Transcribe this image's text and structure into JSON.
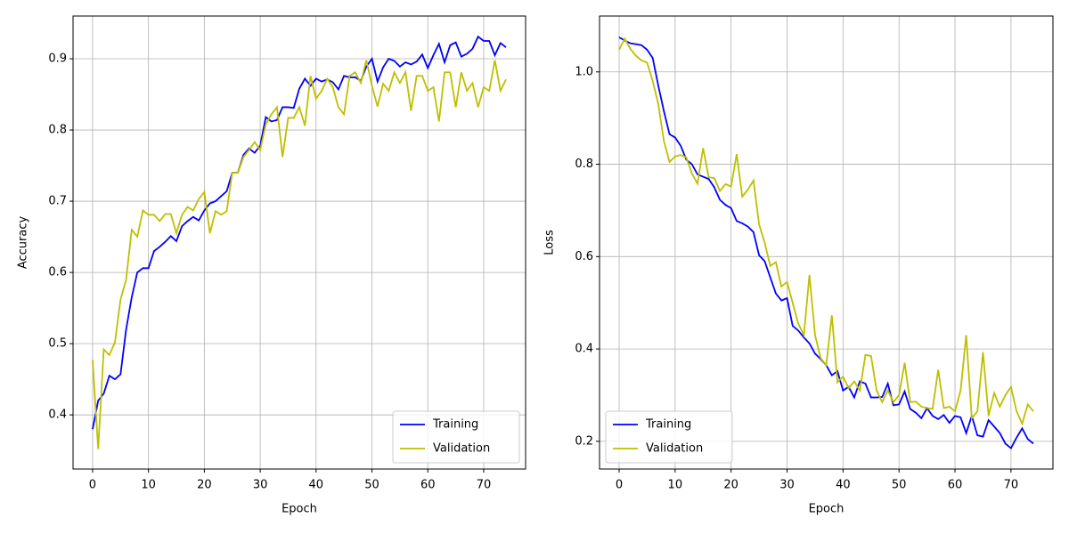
{
  "chart_data": [
    {
      "type": "line",
      "xlabel": "Epoch",
      "ylabel": "Accuracy",
      "grid": true,
      "legend": "lower right",
      "x": [
        0,
        1,
        2,
        3,
        4,
        5,
        6,
        7,
        8,
        9,
        10,
        11,
        12,
        13,
        14,
        15,
        16,
        17,
        18,
        19,
        20,
        21,
        22,
        23,
        24,
        25,
        26,
        27,
        28,
        29,
        30,
        31,
        32,
        33,
        34,
        35,
        36,
        37,
        38,
        39,
        40,
        41,
        42,
        43,
        44,
        45,
        46,
        47,
        48,
        49,
        50,
        51,
        52,
        53,
        54,
        55,
        56,
        57,
        58,
        59,
        60,
        61,
        62,
        63,
        64,
        65,
        66,
        67,
        68,
        69,
        70,
        71,
        72,
        73,
        74
      ],
      "xlim": [
        -3.5,
        77.5
      ],
      "xticks": [
        0,
        10,
        20,
        30,
        40,
        50,
        60,
        70
      ],
      "ylim": [
        0.324,
        0.96
      ],
      "yticks": [
        0.4,
        0.5,
        0.6,
        0.7,
        0.8,
        0.9
      ],
      "series": [
        {
          "name": "Training",
          "color": "#0000ff",
          "values": [
            0.38,
            0.42,
            0.43,
            0.455,
            0.45,
            0.457,
            0.52,
            0.565,
            0.6,
            0.606,
            0.606,
            0.63,
            0.636,
            0.643,
            0.651,
            0.644,
            0.665,
            0.672,
            0.678,
            0.673,
            0.687,
            0.697,
            0.7,
            0.707,
            0.714,
            0.74,
            0.74,
            0.765,
            0.774,
            0.768,
            0.778,
            0.818,
            0.812,
            0.814,
            0.832,
            0.832,
            0.831,
            0.858,
            0.872,
            0.862,
            0.872,
            0.868,
            0.871,
            0.867,
            0.857,
            0.876,
            0.874,
            0.874,
            0.869,
            0.889,
            0.9,
            0.868,
            0.888,
            0.9,
            0.897,
            0.889,
            0.895,
            0.892,
            0.896,
            0.906,
            0.887,
            0.905,
            0.921,
            0.895,
            0.919,
            0.923,
            0.903,
            0.907,
            0.914,
            0.931,
            0.925,
            0.925,
            0.905,
            0.922,
            0.916
          ]
        },
        {
          "name": "Validation",
          "color": "#bfbf00",
          "values": [
            0.477,
            0.352,
            0.492,
            0.484,
            0.502,
            0.562,
            0.59,
            0.66,
            0.65,
            0.687,
            0.681,
            0.681,
            0.672,
            0.682,
            0.682,
            0.655,
            0.681,
            0.692,
            0.687,
            0.703,
            0.713,
            0.655,
            0.686,
            0.681,
            0.686,
            0.74,
            0.74,
            0.762,
            0.772,
            0.783,
            0.772,
            0.808,
            0.822,
            0.832,
            0.762,
            0.817,
            0.817,
            0.832,
            0.806,
            0.876,
            0.844,
            0.855,
            0.872,
            0.86,
            0.832,
            0.822,
            0.876,
            0.881,
            0.866,
            0.898,
            0.862,
            0.833,
            0.865,
            0.855,
            0.881,
            0.866,
            0.881,
            0.827,
            0.876,
            0.876,
            0.855,
            0.86,
            0.812,
            0.881,
            0.881,
            0.832,
            0.881,
            0.855,
            0.866,
            0.832,
            0.86,
            0.855,
            0.898,
            0.855,
            0.871
          ]
        }
      ]
    },
    {
      "type": "line",
      "xlabel": "Epoch",
      "ylabel": "Loss",
      "grid": true,
      "legend": "lower left",
      "x": [
        0,
        1,
        2,
        3,
        4,
        5,
        6,
        7,
        8,
        9,
        10,
        11,
        12,
        13,
        14,
        15,
        16,
        17,
        18,
        19,
        20,
        21,
        22,
        23,
        24,
        25,
        26,
        27,
        28,
        29,
        30,
        31,
        32,
        33,
        34,
        35,
        36,
        37,
        38,
        39,
        40,
        41,
        42,
        43,
        44,
        45,
        46,
        47,
        48,
        49,
        50,
        51,
        52,
        53,
        54,
        55,
        56,
        57,
        58,
        59,
        60,
        61,
        62,
        63,
        64,
        65,
        66,
        67,
        68,
        69,
        70,
        71,
        72,
        73,
        74
      ],
      "xlim": [
        -3.5,
        77.5
      ],
      "xticks": [
        0,
        10,
        20,
        30,
        40,
        50,
        60,
        70
      ],
      "ylim": [
        0.14,
        1.121
      ],
      "yticks": [
        0.2,
        0.4,
        0.6,
        0.8,
        {
          "value": 1,
          "label": "1.0"
        }
      ],
      "series": [
        {
          "name": "Training",
          "color": "#0000ff",
          "values": [
            1.075,
            1.068,
            1.062,
            1.06,
            1.058,
            1.048,
            1.03,
            0.97,
            0.915,
            0.865,
            0.858,
            0.84,
            0.81,
            0.8,
            0.778,
            0.773,
            0.768,
            0.75,
            0.723,
            0.712,
            0.705,
            0.677,
            0.672,
            0.665,
            0.653,
            0.603,
            0.59,
            0.555,
            0.52,
            0.505,
            0.51,
            0.45,
            0.44,
            0.425,
            0.412,
            0.39,
            0.378,
            0.365,
            0.343,
            0.352,
            0.31,
            0.318,
            0.295,
            0.33,
            0.325,
            0.295,
            0.295,
            0.296,
            0.325,
            0.278,
            0.28,
            0.308,
            0.27,
            0.262,
            0.25,
            0.272,
            0.255,
            0.248,
            0.257,
            0.24,
            0.255,
            0.252,
            0.218,
            0.255,
            0.213,
            0.21,
            0.246,
            0.232,
            0.218,
            0.195,
            0.185,
            0.208,
            0.228,
            0.205,
            0.195
          ]
        },
        {
          "name": "Validation",
          "color": "#bfbf00",
          "values": [
            1.048,
            1.072,
            1.05,
            1.035,
            1.025,
            1.02,
            0.98,
            0.93,
            0.85,
            0.805,
            0.817,
            0.82,
            0.815,
            0.78,
            0.758,
            0.835,
            0.772,
            0.77,
            0.742,
            0.757,
            0.752,
            0.822,
            0.73,
            0.745,
            0.765,
            0.67,
            0.63,
            0.58,
            0.588,
            0.535,
            0.545,
            0.5,
            0.455,
            0.43,
            0.56,
            0.43,
            0.38,
            0.365,
            0.473,
            0.328,
            0.34,
            0.315,
            0.33,
            0.31,
            0.387,
            0.385,
            0.31,
            0.285,
            0.31,
            0.285,
            0.3,
            0.37,
            0.285,
            0.286,
            0.275,
            0.272,
            0.27,
            0.355,
            0.272,
            0.275,
            0.265,
            0.31,
            0.43,
            0.25,
            0.265,
            0.393,
            0.255,
            0.305,
            0.275,
            0.3,
            0.318,
            0.265,
            0.238,
            0.28,
            0.265
          ]
        }
      ]
    }
  ]
}
